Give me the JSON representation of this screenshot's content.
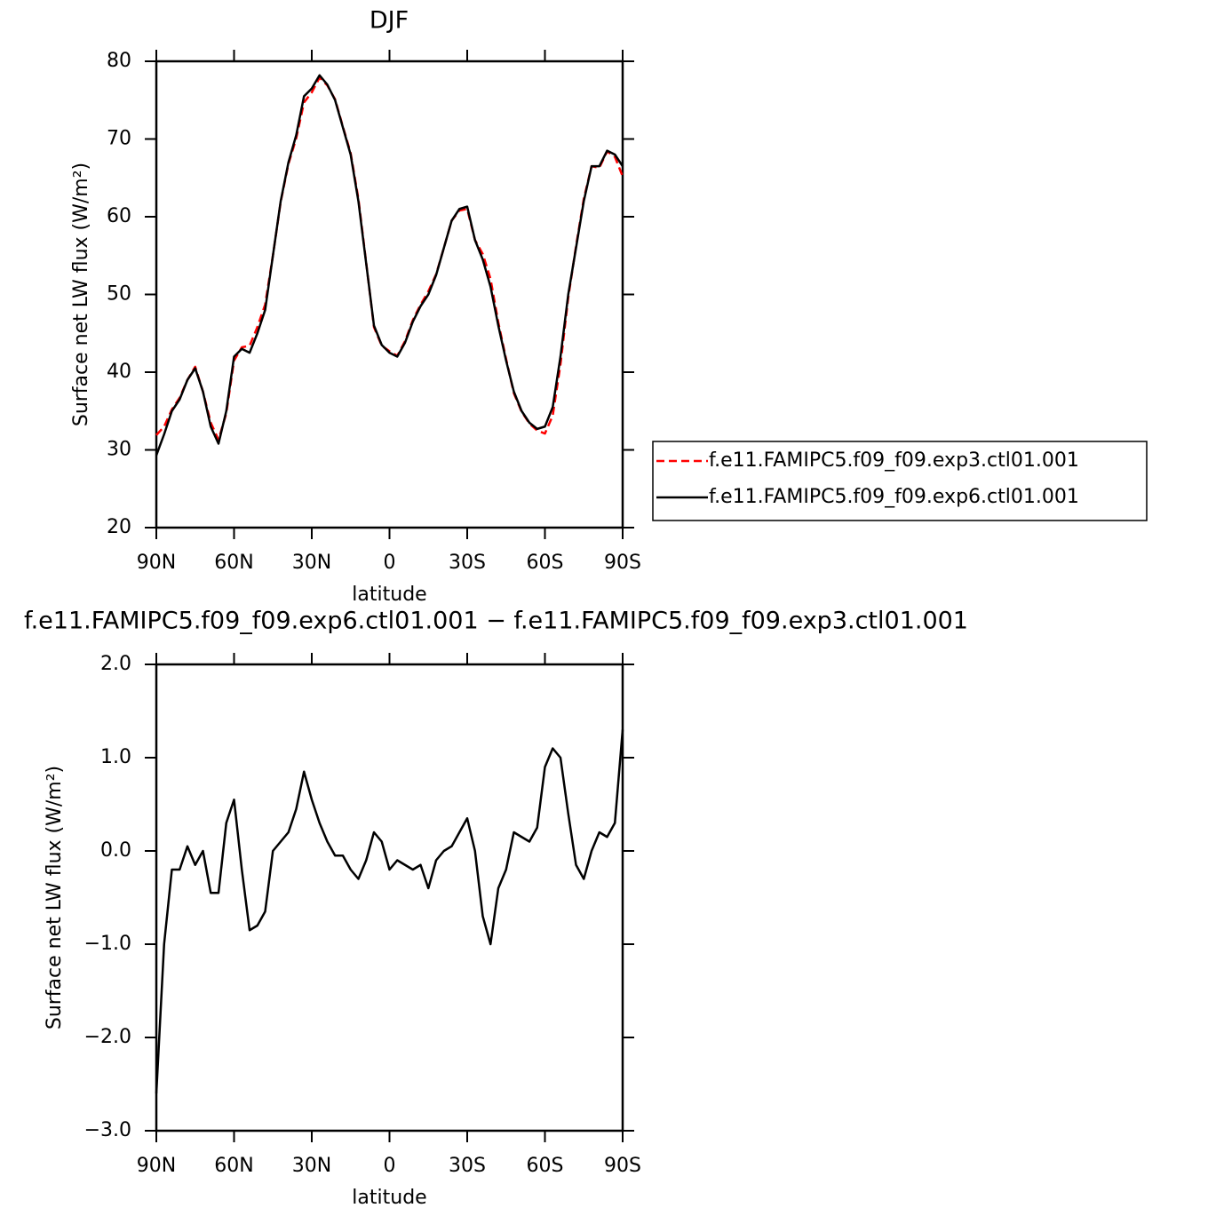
{
  "chart_data": [
    {
      "type": "line",
      "title": "DJF",
      "xlabel": "latitude",
      "ylabel": "Surface net LW flux (W/m²)",
      "x": [
        90,
        87,
        84,
        81,
        78,
        75,
        72,
        69,
        66,
        63,
        60,
        57,
        54,
        51,
        48,
        45,
        42,
        39,
        36,
        33,
        30,
        27,
        24,
        21,
        18,
        15,
        12,
        9,
        6,
        3,
        0,
        -3,
        -6,
        -9,
        -12,
        -15,
        -18,
        -21,
        -24,
        -27,
        -30,
        -33,
        -36,
        -39,
        -42,
        -45,
        -48,
        -51,
        -54,
        -57,
        -60,
        -63,
        -66,
        -69,
        -72,
        -75,
        -78,
        -81,
        -84,
        -87,
        -90
      ],
      "series": [
        {
          "name": "f.e11.FAMIPC5.f09_f09.exp3.ctl01.001",
          "color": "#ff0000",
          "dash": true,
          "values": [
            31.9,
            33.0,
            35.2,
            36.7,
            39.0,
            40.7,
            37.5,
            33.5,
            31.3,
            34.7,
            41.5,
            43.2,
            43.4,
            45.8,
            48.7,
            55.0,
            61.9,
            66.8,
            70.1,
            74.7,
            76.0,
            77.9,
            76.9,
            75.1,
            71.6,
            68.2,
            62.3,
            54.1,
            45.8,
            43.4,
            42.7,
            42.1,
            44.0,
            46.7,
            48.7,
            50.4,
            52.6,
            56.0,
            59.5,
            60.8,
            61.0,
            57.0,
            55.2,
            52.0,
            46.4,
            41.7,
            37.3,
            34.9,
            33.4,
            32.5,
            32.1,
            34.4,
            41.0,
            49.6,
            56.2,
            62.3,
            66.5,
            66.3,
            68.4,
            67.7,
            65.2
          ]
        },
        {
          "name": "f.e11.FAMIPC5.f09_f09.exp6.ctl01.001",
          "color": "#000000",
          "dash": false,
          "values": [
            29.3,
            32,
            35,
            36.5,
            39,
            40.5,
            37.5,
            33,
            30.8,
            35,
            42,
            43,
            42.5,
            45,
            48,
            55,
            62,
            67,
            70.5,
            75.5,
            76.5,
            78.2,
            77,
            75,
            71.5,
            68,
            62,
            54,
            46,
            43.5,
            42.5,
            42,
            43.8,
            46.5,
            48.5,
            50,
            52.5,
            56,
            59.5,
            61,
            61.3,
            57,
            54.5,
            51,
            46,
            41.5,
            37.5,
            35,
            33.5,
            32.7,
            33,
            35.5,
            42,
            50,
            56,
            62,
            66.5,
            66.5,
            68.5,
            68,
            66.5
          ]
        }
      ],
      "xlim": [
        90,
        -90
      ],
      "xticks": [
        {
          "value": 90,
          "label": "90N"
        },
        {
          "value": 60,
          "label": "60N"
        },
        {
          "value": 30,
          "label": "30N"
        },
        0,
        {
          "value": -30,
          "label": "30S"
        },
        {
          "value": -60,
          "label": "60S"
        },
        {
          "value": -90,
          "label": "90S"
        }
      ],
      "ylim": [
        20,
        80
      ],
      "yticks": [
        20,
        30,
        40,
        50,
        60,
        70,
        80
      ]
    },
    {
      "type": "line",
      "title": "f.e11.FAMIPC5.f09_f09.exp6.ctl01.001 − f.e11.FAMIPC5.f09_f09.exp3.ctl01.001",
      "xlabel": "latitude",
      "ylabel": "Surface net LW flux (W/m²)",
      "x": [
        90,
        87,
        84,
        81,
        78,
        75,
        72,
        69,
        66,
        63,
        60,
        57,
        54,
        51,
        48,
        45,
        42,
        39,
        36,
        33,
        30,
        27,
        24,
        21,
        18,
        15,
        12,
        9,
        6,
        3,
        0,
        -3,
        -6,
        -9,
        -12,
        -15,
        -18,
        -21,
        -24,
        -27,
        -30,
        -33,
        -36,
        -39,
        -42,
        -45,
        -48,
        -51,
        -54,
        -57,
        -60,
        -63,
        -66,
        -69,
        -72,
        -75,
        -78,
        -81,
        -84,
        -87,
        -90
      ],
      "series": [
        {
          "color": "#000000",
          "dash": false,
          "values": [
            -2.6,
            -1.0,
            -0.2,
            -0.2,
            0.05,
            -0.15,
            0.0,
            -0.45,
            -0.45,
            0.3,
            0.55,
            -0.2,
            -0.85,
            -0.8,
            -0.65,
            0.0,
            0.1,
            0.2,
            0.45,
            0.85,
            0.55,
            0.3,
            0.1,
            -0.05,
            -0.05,
            -0.2,
            -0.3,
            -0.1,
            0.2,
            0.1,
            -0.2,
            -0.1,
            -0.15,
            -0.2,
            -0.15,
            -0.4,
            -0.1,
            0.0,
            0.05,
            0.2,
            0.35,
            0.0,
            -0.7,
            -1.0,
            -0.4,
            -0.2,
            0.2,
            0.15,
            0.1,
            0.25,
            0.9,
            1.1,
            1.0,
            0.4,
            -0.15,
            -0.3,
            0.0,
            0.2,
            0.15,
            0.3,
            1.3
          ]
        }
      ],
      "xlim": [
        90,
        -90
      ],
      "xticks": [
        {
          "value": 90,
          "label": "90N"
        },
        {
          "value": 60,
          "label": "60N"
        },
        {
          "value": 30,
          "label": "30N"
        },
        0,
        {
          "value": -30,
          "label": "30S"
        },
        {
          "value": -60,
          "label": "60S"
        },
        {
          "value": -90,
          "label": "90S"
        }
      ],
      "ylim": [
        -3,
        2
      ],
      "yticks": [
        {
          "value": -3,
          "label": "−3.0"
        },
        {
          "value": -2,
          "label": "−2.0"
        },
        {
          "value": -1,
          "label": "−1.0"
        },
        {
          "value": 0,
          "label": "0.0"
        },
        {
          "value": 1,
          "label": "1.0"
        },
        {
          "value": 2,
          "label": "2.0"
        }
      ]
    }
  ]
}
